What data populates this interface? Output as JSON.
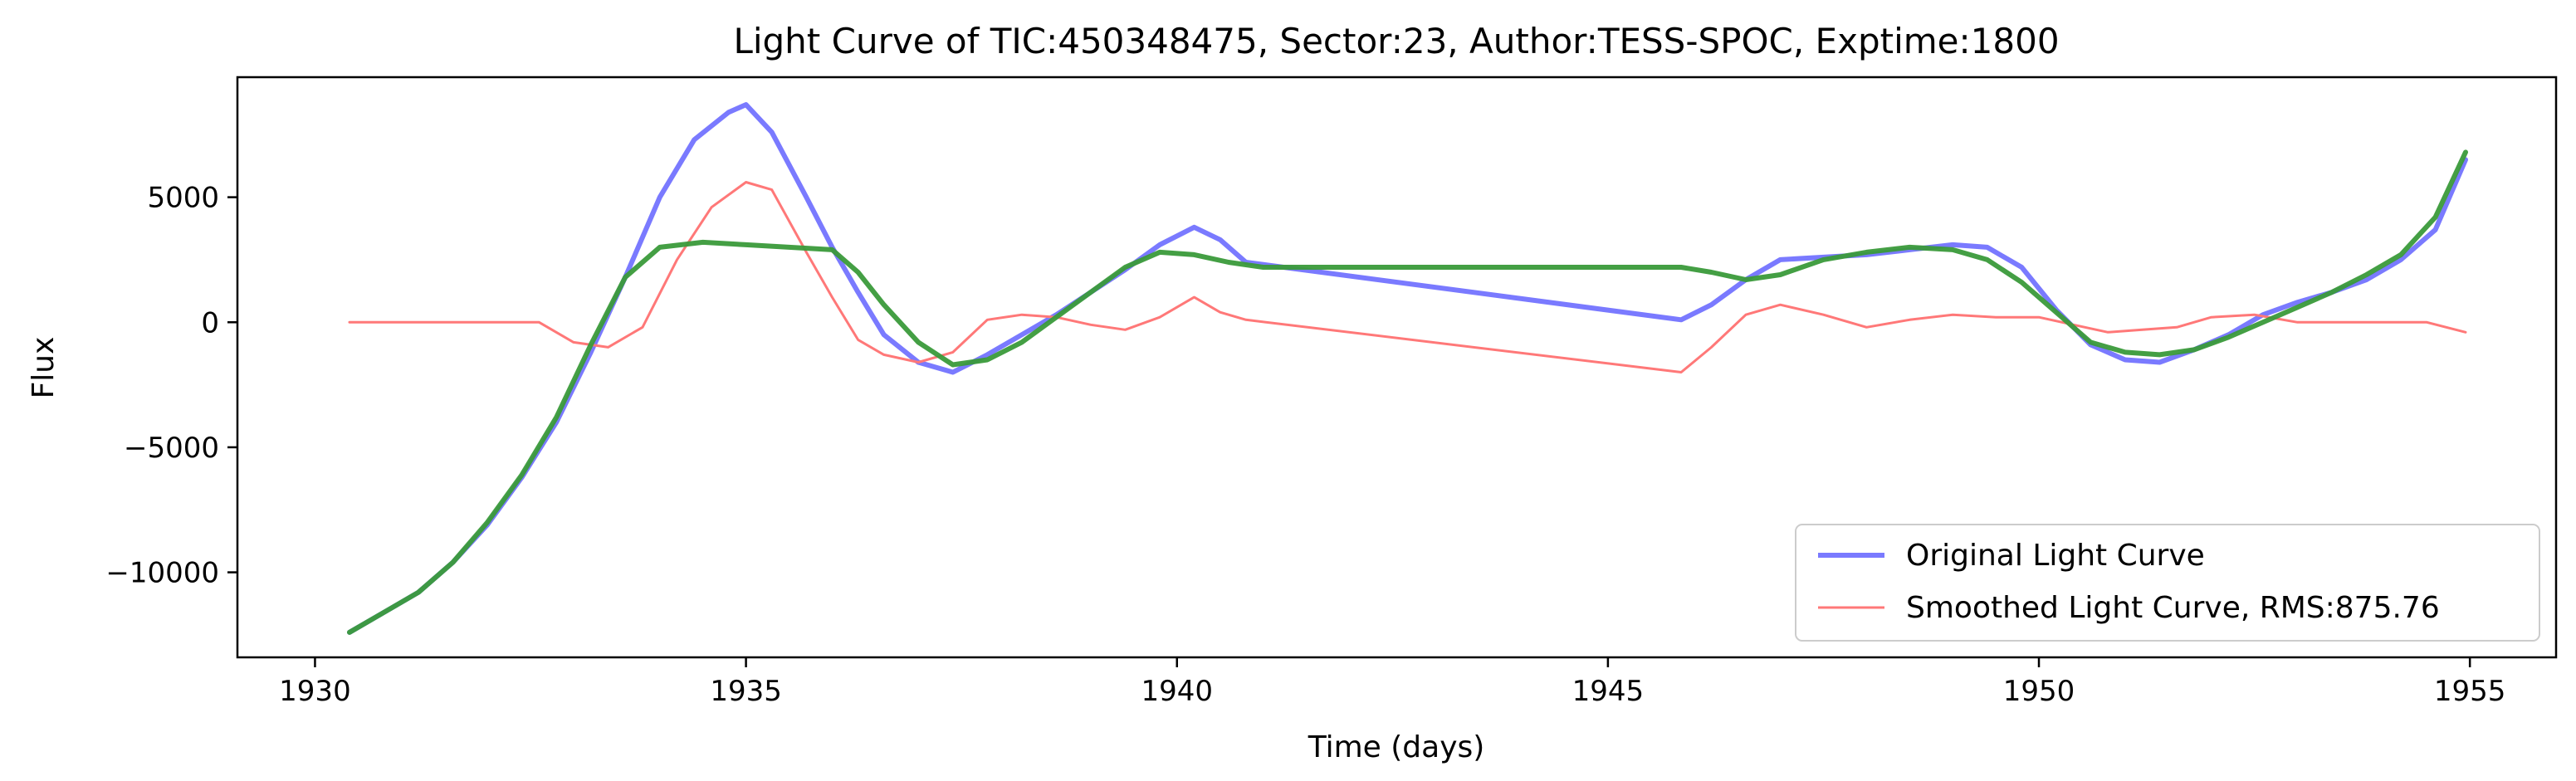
{
  "chart_data": {
    "type": "line",
    "title": "Light Curve of TIC:450348475, Sector:23, Author:TESS-SPOC, Exptime:1800",
    "xlabel": "Time (days)",
    "ylabel": "Flux",
    "xlim": [
      1929.1,
      1956.0
    ],
    "ylim": [
      -13400,
      9800
    ],
    "xticks": [
      1930,
      1935,
      1940,
      1945,
      1950,
      1955
    ],
    "xtick_labels": [
      "1930",
      "1935",
      "1940",
      "1945",
      "1950",
      "1955"
    ],
    "yticks": [
      -10000,
      -5000,
      0,
      5000
    ],
    "ytick_labels": [
      "−10000",
      "−5000",
      "0",
      "5000"
    ],
    "grid": false,
    "legend_position": "lower right",
    "series": [
      {
        "name": "Original Light Curve",
        "color": "#7a7aff",
        "x": [
          1930.4,
          1930.8,
          1931.2,
          1931.6,
          1932.0,
          1932.4,
          1932.8,
          1933.2,
          1933.6,
          1934.0,
          1934.4,
          1934.8,
          1935.0,
          1935.3,
          1935.7,
          1936.0,
          1936.3,
          1936.6,
          1937.0,
          1937.4,
          1937.8,
          1938.2,
          1938.6,
          1939.0,
          1939.4,
          1939.8,
          1940.2,
          1940.5,
          1940.8,
          1945.85,
          1946.2,
          1946.6,
          1947.0,
          1947.5,
          1948.0,
          1948.5,
          1949.0,
          1949.4,
          1949.8,
          1950.2,
          1950.6,
          1951.0,
          1951.4,
          1951.8,
          1952.2,
          1952.6,
          1953.0,
          1953.4,
          1953.8,
          1954.2,
          1954.6,
          1954.95
        ],
        "y": [
          -12400,
          -11600,
          -10800,
          -9600,
          -8100,
          -6200,
          -4000,
          -1200,
          1800,
          5000,
          7300,
          8400,
          8700,
          7600,
          5000,
          3000,
          1200,
          -500,
          -1600,
          -2000,
          -1300,
          -500,
          300,
          1200,
          2100,
          3100,
          3800,
          3300,
          2400,
          100,
          700,
          1700,
          2500,
          2600,
          2700,
          2900,
          3100,
          3000,
          2200,
          500,
          -900,
          -1500,
          -1600,
          -1100,
          -500,
          300,
          800,
          1200,
          1700,
          2500,
          3700,
          6500
        ]
      },
      {
        "name": "Smoothed Light Curve, RMS:875.76",
        "color": "#ff7878",
        "x": [
          1930.4,
          1931.0,
          1931.6,
          1932.2,
          1932.6,
          1933.0,
          1933.4,
          1933.8,
          1934.2,
          1934.6,
          1935.0,
          1935.3,
          1935.7,
          1936.0,
          1936.3,
          1936.6,
          1937.0,
          1937.4,
          1937.8,
          1938.2,
          1938.6,
          1939.0,
          1939.4,
          1939.8,
          1940.2,
          1940.5,
          1940.8,
          1945.85,
          1946.2,
          1946.6,
          1947.0,
          1947.5,
          1948.0,
          1948.5,
          1949.0,
          1949.5,
          1950.0,
          1950.4,
          1950.8,
          1951.2,
          1951.6,
          1952.0,
          1952.5,
          1953.0,
          1953.5,
          1954.0,
          1954.5,
          1954.95
        ],
        "y": [
          0,
          0,
          0,
          0,
          0,
          -800,
          -1000,
          -200,
          2500,
          4600,
          5600,
          5300,
          2800,
          1000,
          -700,
          -1300,
          -1600,
          -1200,
          100,
          300,
          200,
          -100,
          -300,
          200,
          1000,
          400,
          100,
          -2000,
          -1000,
          300,
          700,
          300,
          -200,
          100,
          300,
          200,
          200,
          -100,
          -400,
          -300,
          -200,
          200,
          300,
          0,
          0,
          0,
          0,
          -400
        ]
      },
      {
        "name": "",
        "color": "#3a9a3a",
        "x": [
          1930.4,
          1930.8,
          1931.2,
          1931.6,
          1932.0,
          1932.4,
          1932.8,
          1933.2,
          1933.6,
          1934.0,
          1934.5,
          1935.0,
          1935.5,
          1936.0,
          1936.3,
          1936.6,
          1937.0,
          1937.4,
          1937.8,
          1938.2,
          1938.6,
          1939.0,
          1939.4,
          1939.8,
          1940.2,
          1940.6,
          1941.0,
          1945.85,
          1946.2,
          1946.6,
          1947.0,
          1947.5,
          1948.0,
          1948.5,
          1949.0,
          1949.4,
          1949.8,
          1950.2,
          1950.6,
          1951.0,
          1951.4,
          1951.8,
          1952.2,
          1952.6,
          1953.0,
          1953.4,
          1953.8,
          1954.2,
          1954.6,
          1954.95
        ],
        "y": [
          -12400,
          -11600,
          -10800,
          -9600,
          -8000,
          -6100,
          -3800,
          -900,
          1800,
          3000,
          3200,
          3100,
          3000,
          2900,
          2000,
          700,
          -800,
          -1700,
          -1500,
          -800,
          200,
          1200,
          2200,
          2800,
          2700,
          2400,
          2200,
          2200,
          2000,
          1700,
          1900,
          2500,
          2800,
          3000,
          2900,
          2500,
          1600,
          400,
          -800,
          -1200,
          -1300,
          -1100,
          -600,
          0,
          600,
          1200,
          1900,
          2700,
          4200,
          6800
        ]
      }
    ]
  }
}
